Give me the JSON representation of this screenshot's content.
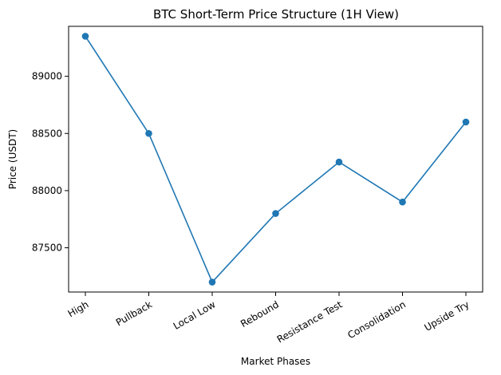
{
  "chart_data": {
    "type": "line",
    "title": "BTC Short-Term Price Structure (1H View)",
    "xlabel": "Market Phases",
    "ylabel": "Price (USDT)",
    "categories": [
      "High",
      "Pullback",
      "Local Low",
      "Rebound",
      "Resistance Test",
      "Consolidation",
      "Upside Try"
    ],
    "series": [
      {
        "values": [
          89350,
          88500,
          87200,
          87800,
          88250,
          87900,
          88600
        ],
        "color": "#1f77b4"
      }
    ],
    "yticks": [
      87500,
      88000,
      88500,
      89000
    ],
    "ylim": [
      87113,
      89437
    ],
    "grid": false
  }
}
